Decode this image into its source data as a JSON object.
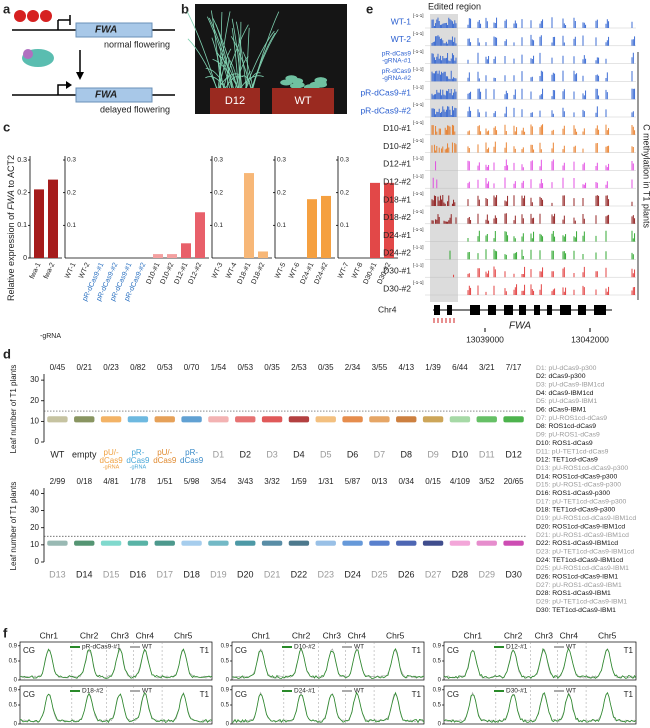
{
  "panel_labels": [
    "a",
    "b",
    "c",
    "d",
    "e",
    "f"
  ],
  "a": {
    "gene": "FWA",
    "top": "normal flowering",
    "bottom": "delayed flowering"
  },
  "b": {
    "labels": [
      "D12",
      "WT"
    ]
  },
  "c": {
    "y_label_pre": "Relative expression of ",
    "gene": "FWA",
    "y_label_post": " to ACT2",
    "note": "-gRNA"
  },
  "chart_data": [
    {
      "type": "bar",
      "categories": [
        "fwa-1",
        "fwa-2"
      ],
      "values": [
        0.21,
        0.24
      ],
      "colors": [
        "#a51c1c",
        "#a51c1c"
      ],
      "ylim": [
        0,
        0.3
      ],
      "yticks": [
        0,
        0.1,
        0.2,
        0.3
      ]
    },
    {
      "type": "bar",
      "categories": [
        "WT-1",
        "WT-2",
        "pR-dCas9-#1",
        "pR-dCas9-#2",
        "pR-dCas9-#1",
        "pR-dCas9-#2",
        "D10-#1",
        "D10-#2",
        "D12-#1",
        "D12-#2"
      ],
      "values": [
        0,
        0,
        0,
        0,
        0,
        0,
        0.012,
        0.012,
        0.045,
        0.14
      ],
      "colors": [
        "#888",
        "#888",
        "#3a8ac8",
        "#3a8ac8",
        "#3a8ac8",
        "#3a8ac8",
        "#f4a0a0",
        "#f4a0a0",
        "#e8606a",
        "#e8606a"
      ],
      "ylim": [
        0,
        0.3
      ],
      "yticks": [
        0.1,
        0.2,
        0.3
      ]
    },
    {
      "type": "bar",
      "categories": [
        "WT-3",
        "WT-4",
        "D18-#1",
        "D18-#2"
      ],
      "values": [
        0,
        0,
        0.26,
        0.02
      ],
      "colors": [
        "#888",
        "#888",
        "#f7b777",
        "#f7b777"
      ],
      "ylim": [
        0,
        0.3
      ],
      "yticks": [
        0.1,
        0.2,
        0.3
      ]
    },
    {
      "type": "bar",
      "categories": [
        "WT-5",
        "WT-6",
        "D24-#1",
        "D24-#2"
      ],
      "values": [
        0,
        0,
        0.18,
        0.19
      ],
      "colors": [
        "#888",
        "#888",
        "#f5a040",
        "#f5a040"
      ],
      "ylim": [
        0,
        0.3
      ],
      "yticks": [
        0.1,
        0.2,
        0.3
      ]
    },
    {
      "type": "bar",
      "categories": [
        "WT-7",
        "WT-8",
        "D30-#1",
        "D30-#2"
      ],
      "values": [
        0,
        0,
        0.23,
        0.23
      ],
      "colors": [
        "#888",
        "#888",
        "#e24848",
        "#e24848"
      ],
      "ylim": [
        0,
        0.3
      ],
      "yticks": [
        0.1,
        0.2,
        0.3
      ]
    }
  ],
  "d": {
    "y_label": "Leaf number of T1 plants",
    "rows": [
      {
        "fractions": [
          "0/45",
          "0/21",
          "0/23",
          "0/82",
          "0/53",
          "0/70",
          "1/54",
          "0/53",
          "0/35",
          "2/53",
          "0/35",
          "2/34",
          "3/55",
          "4/13",
          "1/39",
          "6/44",
          "3/21",
          "7/17"
        ],
        "categories": [
          "WT",
          "empty",
          [
            "pU/-",
            "dCas9",
            "-gRNA"
          ],
          [
            "pR-",
            "dCas9",
            "-gRNA"
          ],
          [
            "pU/-",
            "dCas9"
          ],
          [
            "pR-",
            "dCas9"
          ],
          "D1",
          "D2",
          "D3",
          "D4",
          "D5",
          "D6",
          "D7",
          "D8",
          "D9",
          "D10",
          "D11",
          "D12"
        ],
        "colors": [
          "#b8b48a",
          "#6b7a3a",
          "#f0a040",
          "#4aa8d8",
          "#e08a30",
          "#3a8ac8",
          "#f0a0a0",
          "#e05050",
          "#d83030",
          "#a01010",
          "#f0b060",
          "#e07020",
          "#e09040",
          "#c06010",
          "#c09030",
          "#90d090",
          "#40b040",
          "#20a020"
        ],
        "ylim": [
          0,
          32
        ],
        "yticks": [
          0,
          10,
          20,
          30
        ],
        "threshold": 15
      },
      {
        "fractions": [
          "2/99",
          "0/18",
          "4/81",
          "1/78",
          "1/51",
          "5/98",
          "3/54",
          "3/43",
          "3/32",
          "1/59",
          "1/31",
          "5/87",
          "0/13",
          "0/34",
          "0/15",
          "4/109",
          "3/52",
          "20/65"
        ],
        "categories": [
          "D13",
          "D14",
          "D15",
          "D16",
          "D17",
          "D18",
          "D19",
          "D20",
          "D21",
          "D22",
          "D23",
          "D24",
          "D25",
          "D26",
          "D27",
          "D28",
          "D29",
          "D30"
        ],
        "colors": [
          "#80a8a0",
          "#2a7a50",
          "#60d0c0",
          "#30a090",
          "#208070",
          "#90c0e8",
          "#50a8b8",
          "#208090",
          "#307090",
          "#205870",
          "#80b0e0",
          "#4080d0",
          "#3060c0",
          "#2040a0",
          "#102070",
          "#f090d0",
          "#e070c0",
          "#c020a0"
        ],
        "ylim": [
          0,
          42
        ],
        "yticks": [
          0,
          10,
          20,
          30,
          40
        ],
        "threshold": 15
      }
    ],
    "legend": [
      "D1: pU-dCas9-p300",
      "D2: dCas9-p300",
      "D3: pU-dCas9-IBM1cd",
      "D4: dCas9-IBM1cd",
      "D5: pU-dCas9-IBM1",
      "D6: dCas9-IBM1",
      "D7: pU-ROS1cd-dCas9",
      "D8: ROS1cd-dCas9",
      "D9: pU-ROS1-dCas9",
      "D10: ROS1-dCas9",
      "D11: pU-TET1cd-dCas9",
      "D12: TET1cd-dCas9",
      "D13: pU-ROS1cd-dCas9-p300",
      "D14: ROS1cd-dCas9-p300",
      "D15: pU-ROS1-dCas9-p300",
      "D16: ROS1-dCas9-p300",
      "D17: pU-TET1cd-dCas9-p300",
      "D18: TET1cd-dCas9-p300",
      "D19: pU-ROS1cd-dCas9-IBM1cd",
      "D20: ROS1cd-dCas9-IBM1cd",
      "D21: pU-ROS1-dCas9-IBM1cd",
      "D22: ROS1-dCas9-IBM1cd",
      "D23: pU-TET1cd-dCas9-IBM1cd",
      "D24: TET1cd-dCas9-IBM1cd",
      "D25: pU-ROS1cd-dCas9-IBM1",
      "D26: ROS1cd-dCas9-IBM1",
      "D27: pU-ROS1-dCas9-IBM1",
      "D28: ROS1-dCas9-IBM1",
      "D29: pU-TET1cd-dCas9-IBM1",
      "D30: TET1cd-dCas9-IBM1"
    ]
  },
  "e": {
    "region": "Edited region",
    "side_label": "C methylation in T1 plants",
    "scale": "[-1-1]",
    "tracks": [
      "WT-1",
      "WT-2",
      [
        "pR-dCas9",
        "-gRNA-#1"
      ],
      [
        "pR-dCas9",
        "-gRNA-#2"
      ],
      "pR-dCas9-#1",
      "pR-dCas9-#2",
      "D10-#1",
      "D10-#2",
      "D12-#1",
      "D12-#2",
      "D18-#1",
      "D18-#2",
      "D24-#1",
      "D24-#2",
      "D30-#1",
      "D30-#2"
    ],
    "colors": [
      "#2a5fd0",
      "#2a5fd0",
      "#2a5fd0",
      "#2a5fd0",
      "#2a5fd0",
      "#2a5fd0",
      "#e87820",
      "#e87820",
      "#e040e0",
      "#e040e0",
      "#8a1010",
      "#8a1010",
      "#20a020",
      "#20a020",
      "#e03030",
      "#e03030"
    ],
    "chrom": "Chr4",
    "gene": "FWA",
    "coords": [
      "13039000",
      "13042000"
    ]
  },
  "f": {
    "context": "CG",
    "chromosomes": [
      "Chr1",
      "Chr2",
      "Chr3",
      "Chr4",
      "Chr5"
    ],
    "ref": "WT",
    "generation": "T1",
    "samples": [
      "pR-dCas9-#1",
      "D10-#2",
      "D12-#1",
      "D18-#2",
      "D24-#1",
      "D30-#1"
    ],
    "yticks": [
      0.9,
      0.5,
      0
    ],
    "ylim": [
      0,
      1
    ]
  }
}
